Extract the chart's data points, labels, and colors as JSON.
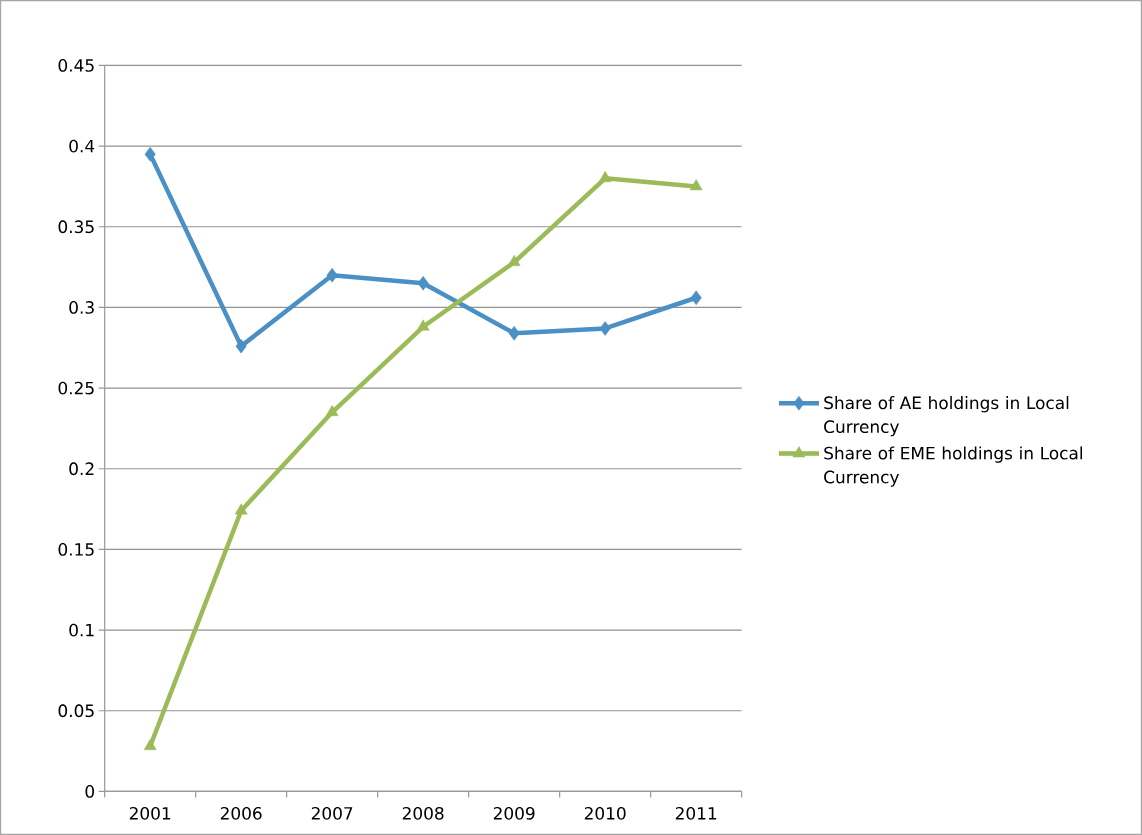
{
  "chart_data": {
    "type": "line",
    "categories": [
      "2001",
      "2006",
      "2007",
      "2008",
      "2009",
      "2010",
      "2011"
    ],
    "series": [
      {
        "name": "Share of AE holdings in Local Currency",
        "color": "#4a90c4",
        "marker": "diamond",
        "values": [
          0.395,
          0.276,
          0.32,
          0.315,
          0.284,
          0.287,
          0.306
        ]
      },
      {
        "name": "Share of EME holdings in Local Currency",
        "color": "#9bbb59",
        "marker": "triangle",
        "values": [
          0.028,
          0.174,
          0.235,
          0.288,
          0.328,
          0.38,
          0.375
        ]
      }
    ],
    "ylim": [
      0,
      0.45
    ],
    "yticks": [
      0,
      0.05,
      0.1,
      0.15,
      0.2,
      0.25,
      0.3,
      0.35,
      0.4,
      0.45
    ],
    "grid": "y",
    "legend": "right",
    "line_style": "solid"
  }
}
